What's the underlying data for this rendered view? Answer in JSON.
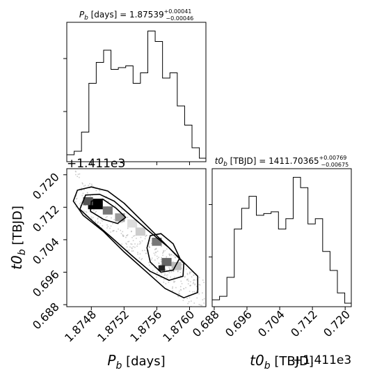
{
  "chart_data": {
    "type": "corner",
    "panels": [
      {
        "kind": "histogram",
        "parameter": "P_b",
        "title": {
          "prefix": "P",
          "sub": "b",
          "unit": " [days] = 1.87539",
          "plus": "+0.00041",
          "minus": "−0.00046"
        },
        "xlim": [
          1.8745,
          1.8762
        ],
        "bin_edges": [
          1.8745,
          1.87459,
          1.87468,
          1.87477,
          1.87486,
          1.87495,
          1.87504,
          1.87513,
          1.87522,
          1.87531,
          1.8754,
          1.87549,
          1.87558,
          1.87567,
          1.87576,
          1.87585,
          1.87594,
          1.87603,
          1.87612,
          1.8762
        ],
        "counts": [
          4,
          6,
          17,
          45,
          57,
          64,
          53,
          54,
          55,
          45,
          51,
          75,
          69,
          48,
          51,
          32,
          21,
          8,
          2
        ],
        "ymax": 80
      },
      {
        "kind": "histogram",
        "parameter": "t0_b",
        "title": {
          "prefix": "t0",
          "sub": "b",
          "unit": " [TBJD] = 1411.70365",
          "plus": "+0.00769",
          "minus": "−0.00675"
        },
        "xlim": [
          0.6875,
          0.7215
        ],
        "bin_edges": [
          0.6875,
          0.6893,
          0.6911,
          0.6929,
          0.6947,
          0.6965,
          0.6983,
          0.7001,
          0.7019,
          0.7037,
          0.7055,
          0.7073,
          0.7091,
          0.7109,
          0.7127,
          0.7145,
          0.7163,
          0.7181,
          0.7199,
          0.7215
        ],
        "counts": [
          4,
          6,
          17,
          45,
          57,
          64,
          53,
          54,
          55,
          45,
          51,
          75,
          69,
          48,
          51,
          32,
          21,
          8,
          2
        ],
        "ymax": 80,
        "x_ticks": [
          "0.688",
          "0.696",
          "0.704",
          "0.712",
          "0.720"
        ],
        "x_tick_values": [
          0.688,
          0.696,
          0.704,
          0.712,
          0.72
        ],
        "x_offset": "+1.411e3",
        "xlabel": {
          "prefix": "t0",
          "sub": "b",
          "unit": " [TBJD]"
        }
      },
      {
        "kind": "2d-density",
        "x_parameter": "P_b",
        "y_parameter": "t0_b",
        "xlim": [
          1.8745,
          1.8762
        ],
        "ylim": [
          0.6875,
          0.7215
        ],
        "x_ticks": [
          "1.8748",
          "1.8752",
          "1.8756",
          "1.8760"
        ],
        "x_tick_values": [
          1.8748,
          1.8752,
          1.8756,
          1.876
        ],
        "y_ticks": [
          "0.688",
          "0.696",
          "0.704",
          "0.712",
          "0.720"
        ],
        "y_tick_values": [
          0.688,
          0.696,
          0.704,
          0.712,
          0.72
        ],
        "y_offset": "+1.411e3",
        "xlabel": {
          "prefix": "P",
          "sub": "b",
          "unit": " [days]"
        },
        "ylabel": {
          "prefix": "t0",
          "sub": "b",
          "unit": " [TBJD]"
        },
        "contours": [
          {
            "level": "outer",
            "points": [
              [
                1.87463,
                0.7162
              ],
              [
                1.8748,
                0.717
              ],
              [
                1.875,
                0.716
              ],
              [
                1.8752,
                0.713
              ],
              [
                1.8754,
                0.709
              ],
              [
                1.87565,
                0.704
              ],
              [
                1.8759,
                0.699
              ],
              [
                1.8761,
                0.695
              ],
              [
                1.8761,
                0.691
              ],
              [
                1.87593,
                0.6897
              ],
              [
                1.8757,
                0.692
              ],
              [
                1.87545,
                0.6965
              ],
              [
                1.8752,
                0.701
              ],
              [
                1.87495,
                0.706
              ],
              [
                1.8747,
                0.71
              ],
              [
                1.87458,
                0.7135
              ]
            ]
          },
          {
            "level": "mid",
            "points": [
              [
                1.87473,
                0.715
              ],
              [
                1.8749,
                0.7152
              ],
              [
                1.87508,
                0.7135
              ],
              [
                1.87528,
                0.71
              ],
              [
                1.87548,
                0.7065
              ],
              [
                1.87575,
                0.702
              ],
              [
                1.87593,
                0.6982
              ],
              [
                1.87592,
                0.695
              ],
              [
                1.87575,
                0.694
              ],
              [
                1.87552,
                0.6962
              ],
              [
                1.8753,
                0.7
              ],
              [
                1.87505,
                0.7045
              ],
              [
                1.87482,
                0.7085
              ],
              [
                1.87466,
                0.7115
              ]
            ]
          },
          {
            "level": "inner-1",
            "points": [
              [
                1.8748,
                0.7135
              ],
              [
                1.87494,
                0.714
              ],
              [
                1.8751,
                0.7118
              ],
              [
                1.87522,
                0.7095
              ],
              [
                1.87512,
                0.708
              ],
              [
                1.87495,
                0.709
              ],
              [
                1.87479,
                0.711
              ]
            ]
          },
          {
            "level": "inner-2",
            "points": [
              [
                1.87552,
                0.705
              ],
              [
                1.87565,
                0.7055
              ],
              [
                1.8758,
                0.703
              ],
              [
                1.87588,
                0.6995
              ],
              [
                1.8758,
                0.6965
              ],
              [
                1.87565,
                0.696
              ],
              [
                1.87552,
                0.6985
              ],
              [
                1.87548,
                0.702
              ]
            ]
          }
        ],
        "density_cells": [
          {
            "x": 1.87485,
            "y": 0.7128,
            "w": 0.00018,
            "h": 0.0026,
            "shade": "#000000"
          },
          {
            "x": 1.87476,
            "y": 0.7135,
            "w": 0.00012,
            "h": 0.002,
            "shade": "#555555"
          },
          {
            "x": 1.875,
            "y": 0.7112,
            "w": 0.00012,
            "h": 0.002,
            "shade": "#777777"
          },
          {
            "x": 1.87515,
            "y": 0.7095,
            "w": 0.00012,
            "h": 0.002,
            "shade": "#999999"
          },
          {
            "x": 1.8756,
            "y": 0.7035,
            "w": 0.00012,
            "h": 0.002,
            "shade": "#777777"
          },
          {
            "x": 1.87572,
            "y": 0.6985,
            "w": 0.00012,
            "h": 0.002,
            "shade": "#666666"
          },
          {
            "x": 1.87566,
            "y": 0.697,
            "w": 8e-05,
            "h": 0.0014,
            "shade": "#222222"
          },
          {
            "x": 1.87584,
            "y": 0.6975,
            "w": 0.00012,
            "h": 0.002,
            "shade": "#bbbbbb"
          },
          {
            "x": 1.8754,
            "y": 0.706,
            "w": 0.00012,
            "h": 0.002,
            "shade": "#cccccc"
          },
          {
            "x": 1.8753,
            "y": 0.708,
            "w": 0.00012,
            "h": 0.002,
            "shade": "#dddddd"
          }
        ]
      }
    ]
  }
}
